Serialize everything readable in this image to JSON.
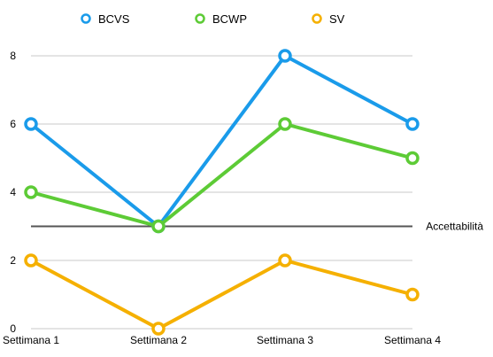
{
  "chart_data": {
    "type": "line",
    "categories": [
      "Settimana 1",
      "Settimana 2",
      "Settimana 3",
      "Settimana 4"
    ],
    "series": [
      {
        "name": "BCVS",
        "color": "#1a9bea",
        "values": [
          6,
          3,
          8,
          6
        ]
      },
      {
        "name": "BCWP",
        "color": "#5dcb36",
        "values": [
          4,
          3,
          6,
          5
        ]
      },
      {
        "name": "SV",
        "color": "#f5b000",
        "values": [
          2,
          0,
          2,
          1
        ]
      }
    ],
    "y_ticks": [
      "0",
      "2",
      "4",
      "6",
      "8"
    ],
    "ylim": [
      0,
      8
    ],
    "grid": true,
    "legend_position": "top",
    "reference_line": {
      "label": "Accettabilità",
      "value": 3,
      "color": "#555555"
    }
  }
}
